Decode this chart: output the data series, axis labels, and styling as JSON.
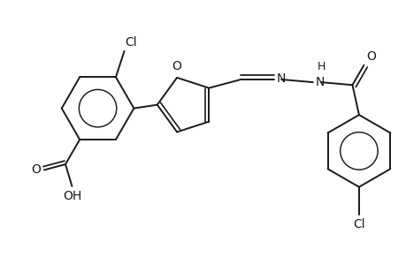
{
  "background_color": "#ffffff",
  "line_color": "#1a1a1a",
  "line_width": 1.4,
  "font_size": 10,
  "figsize": [
    4.6,
    3.0
  ],
  "dpi": 100,
  "xlim": [
    -4.2,
    5.0
  ],
  "ylim": [
    -3.2,
    2.8
  ]
}
